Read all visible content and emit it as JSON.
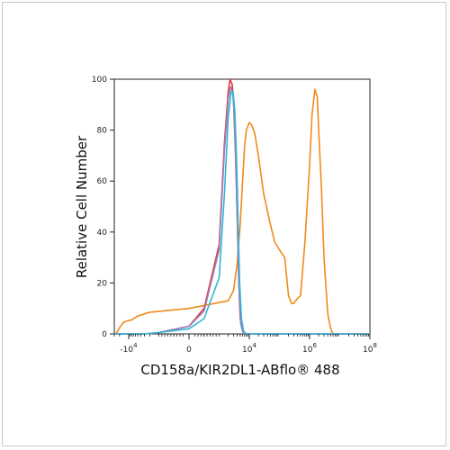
{
  "chart_data": {
    "type": "line",
    "xlabel": "CD158a/KIR2DL1-ABflo® 488",
    "ylabel": "Relative Cell Number",
    "x_scale": "biexponential",
    "xlim": [
      -30000,
      100000000
    ],
    "ylim": [
      0,
      100
    ],
    "y_ticks": [
      {
        "value": 0,
        "label": "0"
      },
      {
        "value": 20,
        "label": "20"
      },
      {
        "value": 40,
        "label": "40"
      },
      {
        "value": 60,
        "label": "60"
      },
      {
        "value": 80,
        "label": "80"
      },
      {
        "value": 100,
        "label": "100"
      }
    ],
    "x_ticks": [
      {
        "value": -10000,
        "base": "-10",
        "exp": "4"
      },
      {
        "value": 0,
        "base": "0",
        "exp": ""
      },
      {
        "value": 10000,
        "base": "10",
        "exp": "4"
      },
      {
        "value": 1000000,
        "base": "10",
        "exp": "6"
      },
      {
        "value": 100000000,
        "base": "10",
        "exp": "8"
      }
    ],
    "grid": false,
    "series": [
      {
        "color": "#f08a1c",
        "points": [
          [
            -30000,
            0
          ],
          [
            -25000,
            0.5
          ],
          [
            -20000,
            2.5
          ],
          [
            -15000,
            4.5
          ],
          [
            -12000,
            5
          ],
          [
            -8000,
            5.5
          ],
          [
            -5000,
            7
          ],
          [
            -2000,
            8.5
          ],
          [
            0,
            10
          ],
          [
            2000,
            13
          ],
          [
            3000,
            17
          ],
          [
            4000,
            28
          ],
          [
            5000,
            43
          ],
          [
            6000,
            60
          ],
          [
            7000,
            74
          ],
          [
            8000,
            80
          ],
          [
            10000,
            83
          ],
          [
            12000,
            82
          ],
          [
            15000,
            79
          ],
          [
            20000,
            70
          ],
          [
            30000,
            55
          ],
          [
            50000,
            43
          ],
          [
            70000,
            36
          ],
          [
            100000,
            33
          ],
          [
            150000,
            30
          ],
          [
            200000,
            15
          ],
          [
            250000,
            12
          ],
          [
            300000,
            12
          ],
          [
            400000,
            14
          ],
          [
            500000,
            15
          ],
          [
            700000,
            36
          ],
          [
            1000000,
            66
          ],
          [
            1200000,
            86
          ],
          [
            1500000,
            96
          ],
          [
            1800000,
            93
          ],
          [
            2000000,
            80
          ],
          [
            2500000,
            56
          ],
          [
            3000000,
            30
          ],
          [
            4000000,
            8
          ],
          [
            5000000,
            2
          ],
          [
            6000000,
            0
          ],
          [
            100000000,
            0
          ]
        ]
      },
      {
        "color": "#e8343c",
        "points": [
          [
            -30000,
            0
          ],
          [
            -3000,
            0
          ],
          [
            -1000,
            0.5
          ],
          [
            0,
            3
          ],
          [
            500,
            10
          ],
          [
            1000,
            35
          ],
          [
            1500,
            75
          ],
          [
            2000,
            95
          ],
          [
            2300,
            100
          ],
          [
            2700,
            98
          ],
          [
            3000,
            92
          ],
          [
            3500,
            70
          ],
          [
            4000,
            45
          ],
          [
            4500,
            20
          ],
          [
            5000,
            6
          ],
          [
            6000,
            1
          ],
          [
            7000,
            0
          ],
          [
            100000000,
            0
          ]
        ]
      },
      {
        "color": "#9b7fb8",
        "points": [
          [
            -30000,
            0
          ],
          [
            -3000,
            0
          ],
          [
            -1000,
            0.5
          ],
          [
            0,
            3
          ],
          [
            500,
            9
          ],
          [
            1000,
            33
          ],
          [
            1500,
            72
          ],
          [
            2000,
            92
          ],
          [
            2400,
            97
          ],
          [
            2800,
            95
          ],
          [
            3200,
            86
          ],
          [
            3700,
            62
          ],
          [
            4200,
            35
          ],
          [
            4700,
            14
          ],
          [
            5200,
            4
          ],
          [
            6000,
            1
          ],
          [
            7000,
            0
          ],
          [
            100000000,
            0
          ]
        ]
      },
      {
        "color": "#2fb6d8",
        "points": [
          [
            -30000,
            0
          ],
          [
            -3000,
            0
          ],
          [
            -1000,
            0.5
          ],
          [
            0,
            2
          ],
          [
            500,
            6
          ],
          [
            1000,
            22
          ],
          [
            1500,
            55
          ],
          [
            2000,
            85
          ],
          [
            2500,
            95
          ],
          [
            2900,
            95
          ],
          [
            3300,
            88
          ],
          [
            3800,
            68
          ],
          [
            4300,
            42
          ],
          [
            4800,
            20
          ],
          [
            5500,
            6
          ],
          [
            6500,
            1
          ],
          [
            8000,
            0
          ],
          [
            100000000,
            0
          ]
        ]
      }
    ]
  }
}
